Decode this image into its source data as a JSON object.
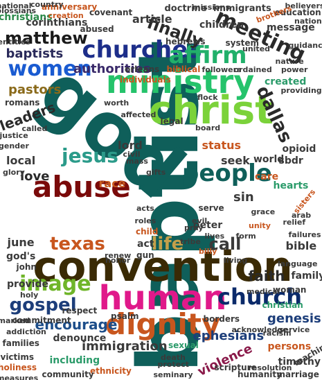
{
  "cloud": {
    "words": [
      {
        "text": "baptist",
        "color": "#0f5f5a"
      },
      {
        "text": "god",
        "color": "#0f5f5a"
      },
      {
        "text": "convention",
        "color": "#3a2a05"
      },
      {
        "text": "human",
        "color": "#e0198a"
      },
      {
        "text": "christ",
        "color": "#7bd23a"
      },
      {
        "text": "ministry",
        "color": "#25c36b"
      },
      {
        "text": "abuse",
        "color": "#7a0a0a"
      },
      {
        "text": "people",
        "color": "#0f5f5a"
      },
      {
        "text": "dignity",
        "color": "#c8561e"
      },
      {
        "text": "churches",
        "color": "#1d2e8a"
      },
      {
        "text": "church",
        "color": "#0b2a6a"
      },
      {
        "text": "women",
        "color": "#1a5bd1"
      },
      {
        "text": "affirm",
        "color": "#21b06a"
      },
      {
        "text": "meeting",
        "color": "#2a2a2a"
      },
      {
        "text": "image",
        "color": "#6fb529"
      },
      {
        "text": "jesus",
        "color": "#2b9b8a"
      },
      {
        "text": "life",
        "color": "#c4a04a"
      },
      {
        "text": "texas",
        "color": "#c8561e"
      },
      {
        "text": "gospel",
        "color": "#1d3e7a"
      },
      {
        "text": "dallas",
        "color": "#2a2a2a"
      },
      {
        "text": "matthew",
        "color": "#1a1a1a"
      },
      {
        "text": "finally",
        "color": "#2a2a2a"
      },
      {
        "text": "authorities",
        "color": "#3a2a6a"
      },
      {
        "text": "baptists",
        "color": "#2a2a5a"
      },
      {
        "text": "pastors",
        "color": "#8a6a1a"
      },
      {
        "text": "leaders",
        "color": "#2a2a2a"
      },
      {
        "text": "encourage",
        "color": "#1d4e8a"
      },
      {
        "text": "immigration",
        "color": "#3a3a3a"
      },
      {
        "text": "ephesians",
        "color": "#1d3e7a"
      },
      {
        "text": "genesis",
        "color": "#1d3e7a"
      },
      {
        "text": "faith",
        "color": "#2a2a2a"
      },
      {
        "text": "call",
        "color": "#3a3a3a"
      },
      {
        "text": "sin",
        "color": "#3a3a3a"
      },
      {
        "text": "bible",
        "color": "#3a3a3a"
      },
      {
        "text": "violence",
        "color": "#8a1a4a"
      },
      {
        "text": "status",
        "color": "#c8561e"
      },
      {
        "text": "love",
        "color": "#2a2a2a"
      },
      {
        "text": "june",
        "color": "#3a3a3a"
      },
      {
        "text": "lord",
        "color": "#3a3a3a"
      },
      {
        "text": "seek",
        "color": "#3a3a3a"
      },
      {
        "text": "race",
        "color": "#c85a1e"
      },
      {
        "text": "local",
        "color": "#3a3a3a"
      },
      {
        "text": "created",
        "color": "#2b9b6a"
      },
      {
        "text": "article",
        "color": "#3a3a3a"
      },
      {
        "text": "children",
        "color": "#3a3a3a"
      },
      {
        "text": "christians",
        "color": "#2b8a4a"
      },
      {
        "text": "corinthians",
        "color": "#3a3a3a"
      },
      {
        "text": "doctrine",
        "color": "#3a3a3a"
      },
      {
        "text": "immigrants",
        "color": "#3a3a3a"
      },
      {
        "text": "message",
        "color": "#3a3a3a"
      },
      {
        "text": "hearts",
        "color": "#2b9b6a"
      },
      {
        "text": "sbdr",
        "color": "#3a3a3a"
      },
      {
        "text": "opioid",
        "color": "#3a3a3a"
      },
      {
        "text": "world",
        "color": "#3a3a3a"
      },
      {
        "text": "care",
        "color": "#c8561e"
      },
      {
        "text": "family",
        "color": "#3a3a3a"
      },
      {
        "text": "provide",
        "color": "#3a3a3a"
      },
      {
        "text": "god's",
        "color": "#3a3a3a"
      },
      {
        "text": "denounce",
        "color": "#3a3a3a"
      },
      {
        "text": "including",
        "color": "#2b9b6a"
      },
      {
        "text": "persons",
        "color": "#c8561e"
      },
      {
        "text": "timothy",
        "color": "#3a3a3a"
      },
      {
        "text": "peter",
        "color": "#3a3a3a"
      },
      {
        "text": "act",
        "color": "#3a3a3a"
      },
      {
        "text": "gun",
        "color": "#3a3a3a"
      },
      {
        "text": "romans",
        "color": "#3a3a3a"
      },
      {
        "text": "system",
        "color": "#3a3a3a"
      },
      {
        "text": "legal",
        "color": "#3a3a3a"
      },
      {
        "text": "orleans",
        "color": "#3a3a3a"
      },
      {
        "text": "individuals",
        "color": "#c8561e"
      },
      {
        "text": "covenant",
        "color": "#3a3a3a"
      },
      {
        "text": "abused",
        "color": "#3a3a3a"
      },
      {
        "text": "anniversary",
        "color": "#c8561e"
      },
      {
        "text": "commitment",
        "color": "#3a3a3a"
      },
      {
        "text": "psalm",
        "color": "#3a3a3a"
      },
      {
        "text": "respect",
        "color": "#3a3a3a"
      },
      {
        "text": "scripture",
        "color": "#3a3a3a"
      },
      {
        "text": "humanity",
        "color": "#3a3a3a"
      },
      {
        "text": "christian",
        "color": "#2b9b6a"
      },
      {
        "text": "woman",
        "color": "#3a3a3a"
      },
      {
        "text": "marriage",
        "color": "#3a3a3a"
      },
      {
        "text": "teaching",
        "color": "#3a3a3a"
      },
      {
        "text": "ethnicity",
        "color": "#c8561e"
      },
      {
        "text": "community",
        "color": "#3a3a3a"
      },
      {
        "text": "victims",
        "color": "#3a3a3a"
      },
      {
        "text": "families",
        "color": "#3a3a3a"
      },
      {
        "text": "holiness",
        "color": "#c8561e"
      },
      {
        "text": "measures",
        "color": "#3a3a3a"
      },
      {
        "text": "seminary",
        "color": "#3a3a3a"
      },
      {
        "text": "resolution",
        "color": "#3a3a3a"
      },
      {
        "text": "sexual",
        "color": "#2b9b6a"
      },
      {
        "text": "borders",
        "color": "#3a3a3a"
      },
      {
        "text": "mass",
        "color": "#3a3a3a"
      },
      {
        "text": "civil",
        "color": "#3a3a3a"
      },
      {
        "text": "education",
        "color": "#3a3a3a"
      },
      {
        "text": "nation",
        "color": "#3a3a3a"
      },
      {
        "text": "hebrews",
        "color": "#3a3a3a"
      },
      {
        "text": "biblical",
        "color": "#c8561e"
      },
      {
        "text": "followers",
        "color": "#3a3a3a"
      },
      {
        "text": "power",
        "color": "#3a3a3a"
      },
      {
        "text": "nature",
        "color": "#3a3a3a"
      },
      {
        "text": "providing",
        "color": "#3a3a3a"
      },
      {
        "text": "guidance",
        "color": "#3a3a3a"
      },
      {
        "text": "justice",
        "color": "#3a3a3a"
      },
      {
        "text": "gender",
        "color": "#3a3a3a"
      },
      {
        "text": "arab",
        "color": "#3a3a3a"
      },
      {
        "text": "relief",
        "color": "#3a3a3a"
      },
      {
        "text": "failures",
        "color": "#3a3a3a"
      },
      {
        "text": "medical",
        "color": "#3a3a3a"
      },
      {
        "text": "unity",
        "color": "#c8561e"
      },
      {
        "text": "sisters",
        "color": "#c8561e"
      },
      {
        "text": "grace",
        "color": "#3a3a3a"
      },
      {
        "text": "serve",
        "color": "#3a3a3a"
      },
      {
        "text": "pray",
        "color": "#3a3a3a"
      },
      {
        "text": "john",
        "color": "#3a3a3a"
      },
      {
        "text": "child",
        "color": "#c8561e"
      },
      {
        "text": "form",
        "color": "#3a3a3a"
      },
      {
        "text": "living",
        "color": "#3a3a3a"
      },
      {
        "text": "holy",
        "color": "#3a3a3a"
      },
      {
        "text": "renew",
        "color": "#3a3a3a"
      },
      {
        "text": "addiction",
        "color": "#3a3a3a"
      },
      {
        "text": "marked",
        "color": "#3a3a3a"
      },
      {
        "text": "acknowledge",
        "color": "#3a3a3a"
      },
      {
        "text": "racism",
        "color": "#3a3a3a"
      },
      {
        "text": "service",
        "color": "#3a3a3a"
      },
      {
        "text": "protect",
        "color": "#3a3a3a"
      },
      {
        "text": "death",
        "color": "#3a3a3a"
      },
      {
        "text": "creation",
        "color": "#c8561e"
      },
      {
        "text": "missions",
        "color": "#3a3a3a"
      },
      {
        "text": "board",
        "color": "#3a3a3a"
      },
      {
        "text": "roles",
        "color": "#3a3a3a"
      },
      {
        "text": "national",
        "color": "#3a3a3a"
      },
      {
        "text": "colossians",
        "color": "#3a3a3a"
      },
      {
        "text": "country",
        "color": "#3a3a3a"
      },
      {
        "text": "entities",
        "color": "#3a3a3a"
      },
      {
        "text": "believers",
        "color": "#3a3a3a"
      },
      {
        "text": "brothers",
        "color": "#c8561e"
      },
      {
        "text": "united",
        "color": "#3a3a3a"
      },
      {
        "text": "lives",
        "color": "#3a3a3a"
      },
      {
        "text": "evil",
        "color": "#3a3a3a"
      },
      {
        "text": "flock",
        "color": "#3a3a3a"
      },
      {
        "text": "tribe",
        "color": "#3a3a3a"
      },
      {
        "text": "honor",
        "color": "#3a3a3a"
      },
      {
        "text": "billy",
        "color": "#c8561e"
      },
      {
        "text": "called",
        "color": "#3a3a3a"
      },
      {
        "text": "glory",
        "color": "#3a3a3a"
      },
      {
        "text": "ordained",
        "color": "#3a3a3a"
      },
      {
        "text": "gifts",
        "color": "#3a3a3a"
      },
      {
        "text": "affected",
        "color": "#3a3a3a"
      },
      {
        "text": "acts",
        "color": "#3a3a3a"
      },
      {
        "text": "worth",
        "color": "#3a3a3a"
      },
      {
        "text": "language",
        "color": "#3a3a3a"
      }
    ]
  }
}
